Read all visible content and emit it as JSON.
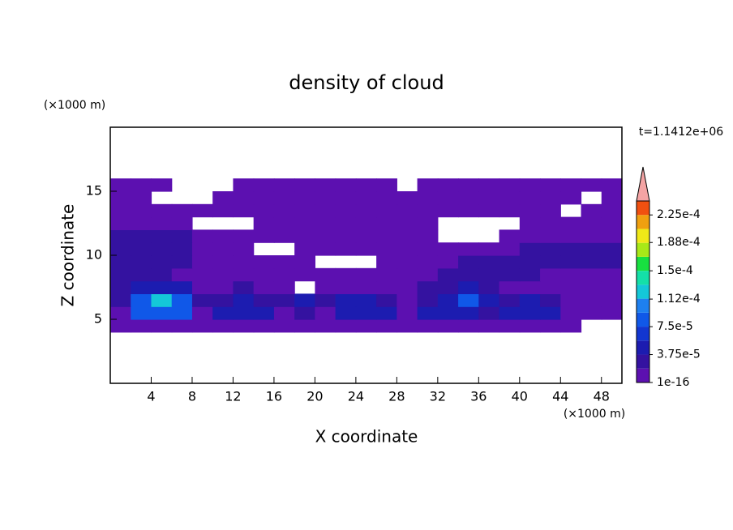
{
  "chart_data": {
    "type": "contour",
    "title": "density of cloud",
    "xlabel": "X coordinate",
    "ylabel": "Z coordinate",
    "xunit": "(×1000 m)",
    "yunit": "(×1000 m)",
    "annotation": "t=1.1412e+06",
    "xlim": [
      0,
      50
    ],
    "ylim": [
      0,
      20
    ],
    "xticks": [
      4,
      8,
      12,
      16,
      20,
      24,
      28,
      32,
      36,
      40,
      44,
      48
    ],
    "yticks": [
      5,
      10,
      15
    ],
    "x": [
      1,
      3,
      5,
      7,
      9,
      11,
      13,
      15,
      17,
      19,
      21,
      23,
      25,
      27,
      29,
      31,
      33,
      35,
      37,
      39,
      41,
      43,
      45,
      47,
      49
    ],
    "y": [
      4.5,
      5.5,
      6.5,
      7.5,
      8.5,
      9.5,
      10.5,
      11.5,
      12.5,
      13.5,
      14.5,
      15.5
    ],
    "z": [
      [
        1e-05,
        1e-05,
        1e-05,
        1e-05,
        1e-05,
        1e-05,
        1e-05,
        1e-05,
        1e-05,
        1e-05,
        1e-05,
        1e-05,
        1e-05,
        1e-05,
        1e-05,
        1e-05,
        1e-05,
        1e-05,
        1e-05,
        1e-05,
        1e-05,
        1e-05,
        1e-05,
        null,
        null
      ],
      [
        1e-05,
        8e-05,
        8e-05,
        8e-05,
        1e-05,
        5e-05,
        5e-05,
        5e-05,
        1e-05,
        2.5e-05,
        1e-05,
        5e-05,
        5e-05,
        5e-05,
        1e-05,
        5e-05,
        5e-05,
        5e-05,
        2.5e-05,
        5e-05,
        5e-05,
        5e-05,
        1e-05,
        1e-05,
        1e-05
      ],
      [
        2.5e-05,
        8e-05,
        0.00012,
        8e-05,
        2.5e-05,
        2.5e-05,
        5e-05,
        2.5e-05,
        2.5e-05,
        5e-05,
        2.5e-05,
        5e-05,
        5e-05,
        2.5e-05,
        1e-05,
        2.5e-05,
        5e-05,
        8e-05,
        5e-05,
        2.5e-05,
        5e-05,
        2.5e-05,
        1e-05,
        1e-05,
        1e-05
      ],
      [
        2.5e-05,
        5e-05,
        5e-05,
        5e-05,
        1e-05,
        1e-05,
        2.5e-05,
        1e-05,
        1e-05,
        null,
        1e-05,
        1e-05,
        1e-05,
        1e-05,
        1e-05,
        2.5e-05,
        2.5e-05,
        5e-05,
        2.5e-05,
        1e-05,
        1e-05,
        1e-05,
        1e-05,
        1e-05,
        1e-05
      ],
      [
        2.5e-05,
        2.5e-05,
        2.5e-05,
        1e-05,
        1e-05,
        1e-05,
        1e-05,
        1e-05,
        1e-05,
        1e-05,
        1e-05,
        1e-05,
        1e-05,
        1e-05,
        1e-05,
        1e-05,
        2.5e-05,
        2.5e-05,
        2.5e-05,
        2.5e-05,
        2.5e-05,
        1e-05,
        1e-05,
        1e-05,
        1e-05
      ],
      [
        2.5e-05,
        2.5e-05,
        2.5e-05,
        2.5e-05,
        1e-05,
        1e-05,
        1e-05,
        1e-05,
        1e-05,
        1e-05,
        null,
        null,
        null,
        1e-05,
        1e-05,
        1e-05,
        1e-05,
        2.5e-05,
        2.5e-05,
        2.5e-05,
        2.5e-05,
        2.5e-05,
        2.5e-05,
        2.5e-05,
        2.5e-05
      ],
      [
        2.5e-05,
        2.5e-05,
        2.5e-05,
        2.5e-05,
        1e-05,
        1e-05,
        1e-05,
        null,
        null,
        1e-05,
        1e-05,
        1e-05,
        1e-05,
        1e-05,
        1e-05,
        1e-05,
        1e-05,
        1e-05,
        1e-05,
        1e-05,
        2.5e-05,
        2.5e-05,
        2.5e-05,
        2.5e-05,
        2.5e-05
      ],
      [
        2.5e-05,
        2.5e-05,
        2.5e-05,
        2.5e-05,
        1e-05,
        1e-05,
        1e-05,
        1e-05,
        1e-05,
        1e-05,
        1e-05,
        1e-05,
        1e-05,
        1e-05,
        1e-05,
        1e-05,
        null,
        null,
        null,
        1e-05,
        1e-05,
        1e-05,
        1e-05,
        1e-05,
        1e-05
      ],
      [
        1e-05,
        1e-05,
        1e-05,
        1e-05,
        null,
        null,
        null,
        1e-05,
        1e-05,
        1e-05,
        1e-05,
        1e-05,
        1e-05,
        1e-05,
        1e-05,
        1e-05,
        null,
        null,
        null,
        null,
        1e-05,
        1e-05,
        1e-05,
        1e-05,
        1e-05
      ],
      [
        1e-05,
        1e-05,
        1e-05,
        1e-05,
        1e-05,
        1e-05,
        1e-05,
        1e-05,
        1e-05,
        1e-05,
        1e-05,
        1e-05,
        1e-05,
        1e-05,
        1e-05,
        1e-05,
        1e-05,
        1e-05,
        1e-05,
        1e-05,
        1e-05,
        1e-05,
        null,
        1e-05,
        1e-05
      ],
      [
        1e-05,
        1e-05,
        null,
        null,
        null,
        1e-05,
        1e-05,
        1e-05,
        1e-05,
        1e-05,
        1e-05,
        1e-05,
        1e-05,
        1e-05,
        1e-05,
        1e-05,
        1e-05,
        1e-05,
        1e-05,
        1e-05,
        1e-05,
        1e-05,
        1e-05,
        null,
        1e-05
      ],
      [
        1e-05,
        1e-05,
        1e-05,
        null,
        null,
        null,
        1e-05,
        1e-05,
        1e-05,
        1e-05,
        1e-05,
        1e-05,
        1e-05,
        1e-05,
        null,
        1e-05,
        1e-05,
        1e-05,
        1e-05,
        1e-05,
        1e-05,
        1e-05,
        1e-05,
        1e-05,
        1e-05
      ]
    ],
    "levels": [
      1e-16,
      1.875e-05,
      3.75e-05,
      5.625e-05,
      7.5e-05,
      9.375e-05,
      0.0001125,
      0.00013125,
      0.00015,
      0.00016875,
      0.0001875,
      0.00020625,
      0.000225,
      0.00024375
    ],
    "colors": [
      "#5c10b0",
      "#3412a0",
      "#1c1cb0",
      "#1236d0",
      "#1058e8",
      "#1e80f0",
      "#14c8d8",
      "#14e0a8",
      "#18e040",
      "#a8e818",
      "#f0e818",
      "#f0a010",
      "#f05010"
    ],
    "extend_color": "#f4a4a4",
    "colorbar_ticks": [
      {
        "value": 1e-16,
        "label": "1e-16"
      },
      {
        "value": 3.75e-05,
        "label": "3.75e-5"
      },
      {
        "value": 7.5e-05,
        "label": "7.5e-5"
      },
      {
        "value": 0.000112,
        "label": "1.12e-4"
      },
      {
        "value": 0.00015,
        "label": "1.5e-4"
      },
      {
        "value": 0.000188,
        "label": "1.88e-4"
      },
      {
        "value": 0.000225,
        "label": "2.25e-4"
      }
    ]
  }
}
